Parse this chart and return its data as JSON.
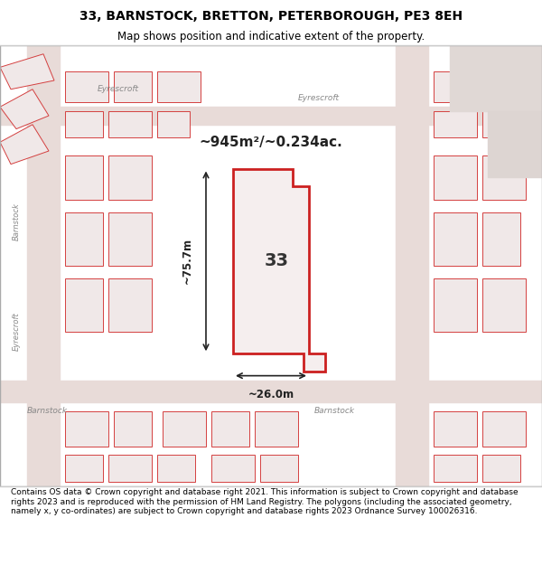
{
  "title_line1": "33, BARNSTOCK, BRETTON, PETERBOROUGH, PE3 8EH",
  "title_line2": "Map shows position and indicative extent of the property.",
  "footer_text": "Contains OS data © Crown copyright and database right 2021. This information is subject to Crown copyright and database rights 2023 and is reproduced with the permission of HM Land Registry. The polygons (including the associated geometry, namely x, y co-ordinates) are subject to Crown copyright and database rights 2023 Ordnance Survey 100026316.",
  "area_text": "~945m²/~0.234ac.",
  "width_label": "~26.0m",
  "height_label": "~75.7m",
  "property_number": "33",
  "map_bg": "#f5f0ee",
  "map_border": "#cccccc",
  "road_color": "#e8d5d0",
  "building_outline_color": "#d44040",
  "highlight_color": "#cc2020",
  "highlight_fill": "#f8f0f0",
  "street_label1": "Eyrescroft",
  "street_label2": "Barnstock",
  "street_label3": "Barnstock",
  "dim_line_color": "#222222"
}
